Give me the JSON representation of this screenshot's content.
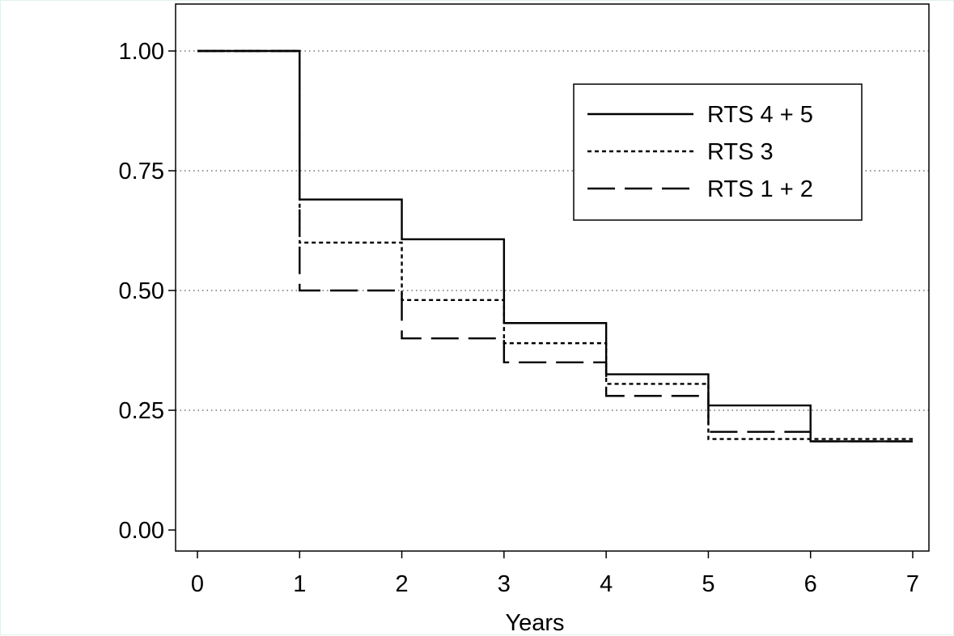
{
  "chart_data": {
    "type": "line",
    "step": true,
    "title": "",
    "xlabel": "Years",
    "ylabel": "",
    "xlim": [
      0,
      7
    ],
    "ylim": [
      0,
      1
    ],
    "x_ticks": [
      "0",
      "1",
      "2",
      "3",
      "4",
      "5",
      "6",
      "7"
    ],
    "y_ticks": [
      "0.00",
      "0.25",
      "0.50",
      "0.75",
      "1.00"
    ],
    "grid": "horizontal-dotted",
    "legend_position": "top-right",
    "series": [
      {
        "name": "RTS 4 + 5",
        "style": "solid",
        "x": [
          0,
          1,
          2,
          3,
          4,
          5,
          6,
          7
        ],
        "y": [
          1.0,
          0.69,
          0.607,
          0.432,
          0.325,
          0.26,
          0.185,
          0.185
        ]
      },
      {
        "name": "RTS 3",
        "style": "dotted",
        "x": [
          0,
          1,
          2,
          3,
          4,
          5,
          6,
          7
        ],
        "y": [
          1.0,
          0.6,
          0.48,
          0.39,
          0.305,
          0.19,
          0.19,
          0.19
        ]
      },
      {
        "name": "RTS 1 + 2",
        "style": "dashed",
        "x": [
          0,
          1,
          2,
          3,
          4,
          5,
          6,
          7
        ],
        "y": [
          1.0,
          0.5,
          0.4,
          0.35,
          0.28,
          0.205,
          0.185,
          0.185
        ]
      }
    ],
    "colors": {
      "line": "#000000",
      "grid": "#555555"
    }
  }
}
